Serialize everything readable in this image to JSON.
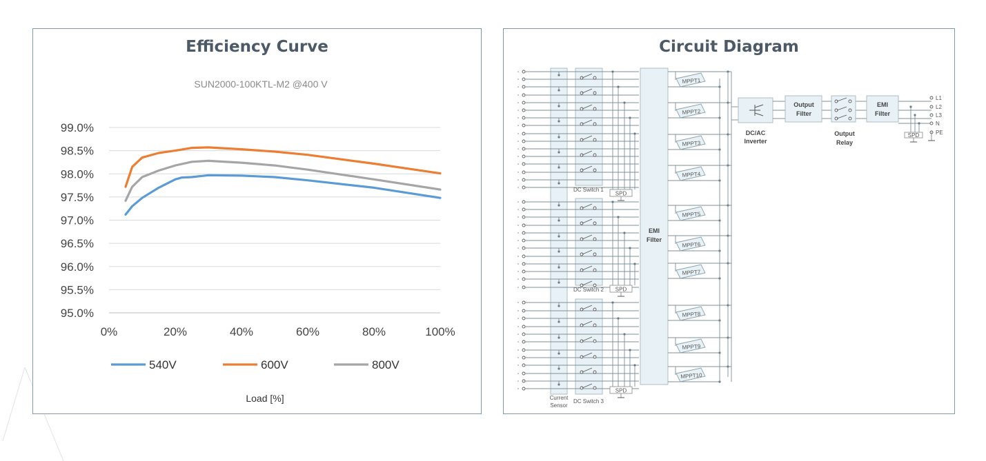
{
  "efficiency": {
    "title": "Efficiency Curve",
    "chart_data": {
      "type": "line",
      "title": "Efficiency Curve",
      "subtitle": "SUN2000-100KTL-M2 @400 V",
      "xlabel": "Load [%]",
      "ylabel": "",
      "xlim": [
        0,
        100
      ],
      "ylim": [
        95.0,
        99.0
      ],
      "x_ticks": [
        "0%",
        "20%",
        "40%",
        "60%",
        "80%",
        "100%"
      ],
      "y_ticks": [
        "95.0%",
        "95.5%",
        "96.0%",
        "96.5%",
        "97.0%",
        "97.5%",
        "98.0%",
        "98.5%",
        "99.0%"
      ],
      "grid": true,
      "legend_position": "bottom",
      "series": [
        {
          "name": "540V",
          "color": "#5b9bd5",
          "x": [
            5,
            7,
            10,
            15,
            20,
            22,
            25,
            30,
            40,
            50,
            60,
            80,
            100
          ],
          "y": [
            97.12,
            97.3,
            97.48,
            97.7,
            97.88,
            97.92,
            97.93,
            97.97,
            97.96,
            97.93,
            97.86,
            97.7,
            97.48
          ]
        },
        {
          "name": "600V",
          "color": "#ed7d31",
          "x": [
            5,
            7,
            10,
            15,
            20,
            25,
            30,
            40,
            50,
            60,
            80,
            100
          ],
          "y": [
            97.72,
            98.15,
            98.35,
            98.45,
            98.5,
            98.56,
            98.57,
            98.53,
            98.48,
            98.41,
            98.22,
            98.01
          ]
        },
        {
          "name": "800V",
          "color": "#a5a5a5",
          "x": [
            5,
            7,
            10,
            15,
            20,
            25,
            30,
            40,
            50,
            60,
            80,
            100
          ],
          "y": [
            97.42,
            97.72,
            97.93,
            98.07,
            98.18,
            98.26,
            98.28,
            98.24,
            98.18,
            98.09,
            97.88,
            97.66
          ]
        }
      ]
    }
  },
  "circuit": {
    "title": "Circuit Diagram",
    "dc_switches": [
      "DC Switch 1",
      "DC Switch 2",
      "DC Switch 3"
    ],
    "spd": "SPD",
    "current_sensor": "Current Sensor",
    "emi_filter_left": "EMI Filter",
    "mppts": [
      "MPPT1",
      "MPPT2",
      "MPPT3",
      "MPPT4",
      "MPPT5",
      "MPPT6",
      "MPPT7",
      "MPPT8",
      "MPPT9",
      "MPPT10"
    ],
    "inverter": "DC/AC Inverter",
    "output_filter": "Output Filter",
    "output_relay": "Output Relay",
    "emi_filter_right": "EMI Filter",
    "ac_terminals": [
      "L1",
      "L2",
      "L3",
      "N",
      "PE"
    ],
    "ac_spd": "SPD"
  }
}
